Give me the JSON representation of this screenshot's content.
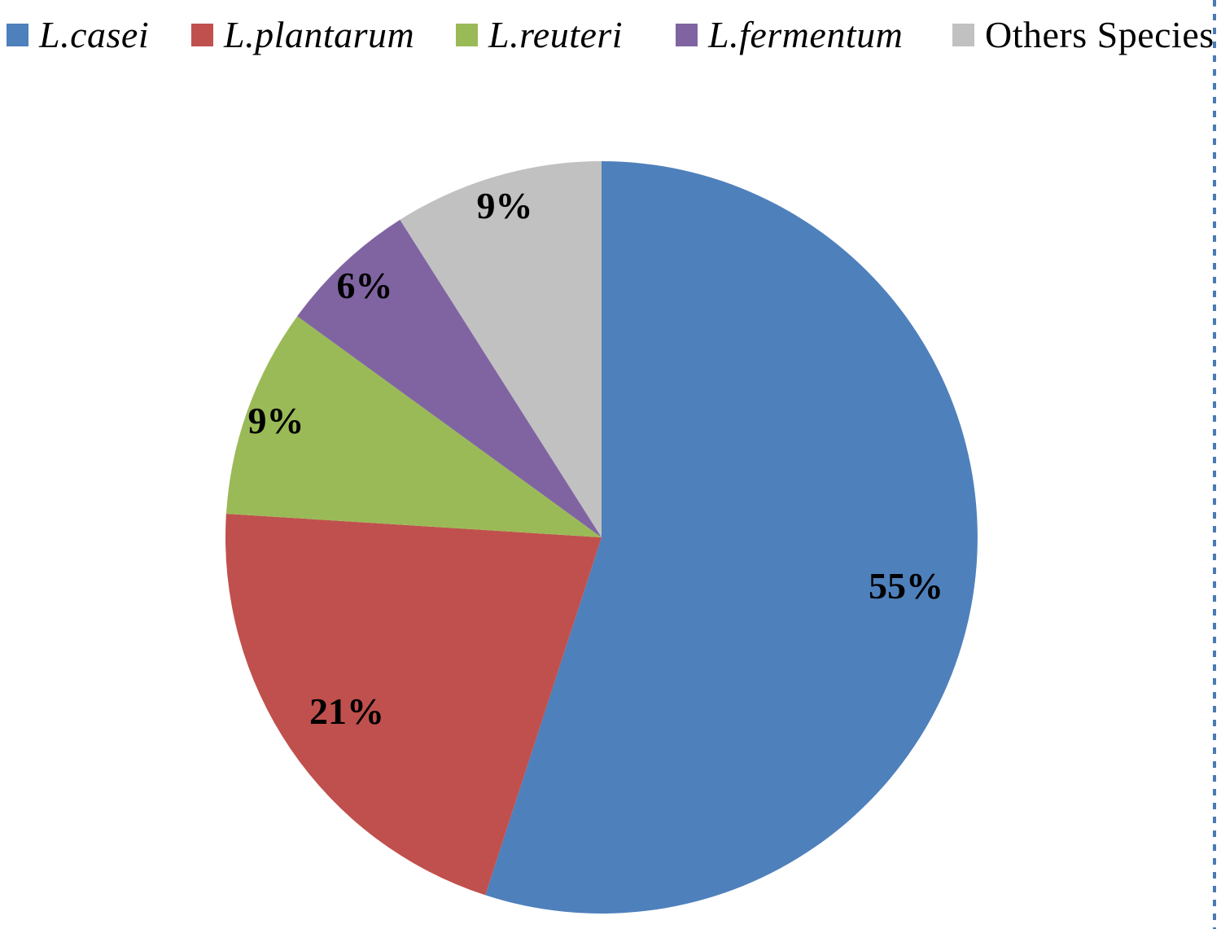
{
  "chart_data": {
    "type": "pie",
    "title": "",
    "legend_position": "top",
    "start_angle_deg": 0,
    "direction": "clockwise",
    "slices": [
      {
        "label": "L.casei",
        "value_pct": 55,
        "data_label": "55%",
        "color": "#4e80bc",
        "italic": true
      },
      {
        "label": "L.plantarum",
        "value_pct": 21,
        "data_label": "21%",
        "color": "#c0504d",
        "italic": true
      },
      {
        "label": "L.reuteri",
        "value_pct": 9,
        "data_label": "9%",
        "color": "#9aba57",
        "italic": true
      },
      {
        "label": "L.fermentum",
        "value_pct": 6,
        "data_label": "6%",
        "color": "#8064a2",
        "italic": true
      },
      {
        "label": "Others Species",
        "value_pct": 9,
        "data_label": "9%",
        "color": "#c1c1c1",
        "italic": false
      }
    ],
    "data_label_color": "#000000",
    "right_border_color": "#4a7ab5"
  }
}
